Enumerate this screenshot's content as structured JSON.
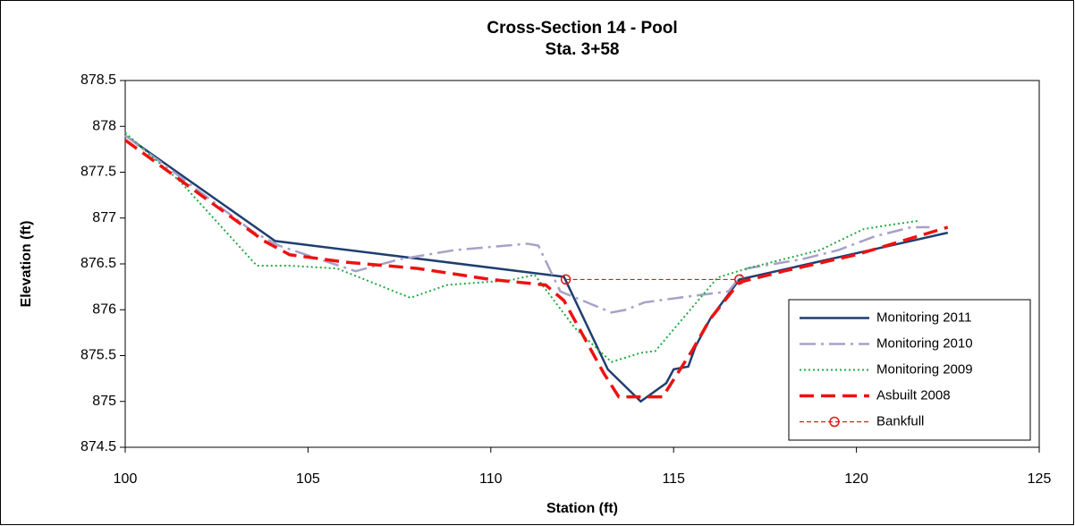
{
  "chart_data": {
    "type": "line",
    "title": "Cross-Section 14 - Pool",
    "subtitle": "Sta. 3+58",
    "x_label": "Station (ft)",
    "y_label": "Elevation (ft)",
    "xlim": [
      100,
      125
    ],
    "xticks": [
      100,
      105,
      110,
      115,
      120,
      125
    ],
    "ylim": [
      874.5,
      878.5
    ],
    "yticks": [
      874.5,
      875,
      875.5,
      876,
      876.5,
      877,
      877.5,
      878,
      878.5
    ],
    "grid": false,
    "legend": "lower right",
    "series": [
      {
        "name": "Monitoring 2011",
        "color": "#1f3f6f",
        "line_style": "solid",
        "width": 2.5,
        "x": [
          100,
          104.1,
          112,
          113.2,
          114.1,
          114.8,
          115,
          115.4,
          115.6,
          116,
          116.8,
          122.5
        ],
        "values": [
          877.9,
          876.75,
          876.36,
          875.35,
          875.0,
          875.2,
          875.35,
          875.38,
          875.6,
          875.9,
          876.33,
          876.84
        ]
      },
      {
        "name": "Monitoring 2010",
        "color": "#a8a0c8",
        "line_style": "dashdot",
        "width": 2.5,
        "x": [
          100,
          102,
          103.5,
          104.2,
          106.3,
          107.5,
          109,
          111,
          111.3,
          111.9,
          113.3,
          113.7,
          114.2,
          115.5,
          116.5,
          117,
          118.5,
          119.5,
          120.5,
          121.5,
          122
        ],
        "values": [
          877.9,
          877.3,
          876.85,
          876.7,
          876.42,
          876.55,
          876.65,
          876.72,
          876.7,
          876.2,
          875.97,
          876.0,
          876.08,
          876.15,
          876.2,
          876.45,
          876.55,
          876.65,
          876.8,
          876.9,
          876.9
        ]
      },
      {
        "name": "Monitoring 2009",
        "color": "#22aa44",
        "line_style": "dotted",
        "width": 2,
        "x": [
          100,
          101.5,
          103.6,
          104.5,
          105.8,
          107.8,
          108.8,
          110.5,
          111.2,
          112.3,
          113.3,
          114.1,
          114.5,
          116.2,
          117,
          118,
          119,
          120.2,
          121,
          121.7
        ],
        "values": [
          877.93,
          877.4,
          876.48,
          876.48,
          876.45,
          876.13,
          876.27,
          876.32,
          876.38,
          875.8,
          875.43,
          875.53,
          875.55,
          876.35,
          876.45,
          876.55,
          876.65,
          876.88,
          876.93,
          876.97
        ]
      },
      {
        "name": "Asbuilt 2008",
        "color": "#ee1111",
        "line_style": "dashed",
        "width": 3.5,
        "x": [
          100,
          103.8,
          104.5,
          106,
          108,
          110,
          111.5,
          112,
          113.1,
          113.5,
          114.7,
          115.5,
          116,
          116.8,
          118,
          120,
          122.5
        ],
        "values": [
          877.85,
          876.75,
          876.6,
          876.52,
          876.45,
          876.33,
          876.27,
          876.1,
          875.3,
          875.05,
          875.05,
          875.55,
          875.9,
          876.3,
          876.42,
          876.6,
          876.9
        ]
      },
      {
        "name": "Bankfull",
        "color": "#ee1111",
        "line_style": "finedash",
        "width": 1.2,
        "marker": "circle",
        "x": [
          112.05,
          116.8
        ],
        "values": [
          876.33,
          876.33
        ]
      }
    ]
  }
}
